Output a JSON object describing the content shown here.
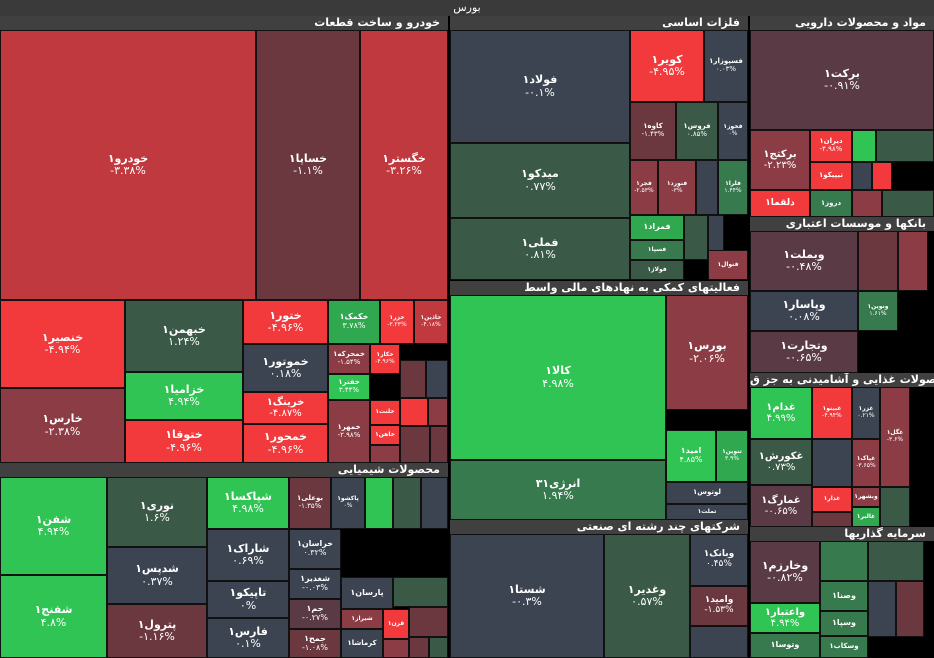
{
  "title": "بورس",
  "colors": {
    "dred": "#c0393f",
    "red": "#f23a3d",
    "mred": "#8b3c44",
    "brown": "#6b3840",
    "dbrown": "#5a3a44",
    "slate": "#3c4451",
    "dgreen": "#3a5a47",
    "mgreen": "#367a4e",
    "green": "#30c454",
    "lgreen": "#2fa84f"
  },
  "sectors": [
    {
      "id": "auto",
      "name": "خودرو و ساخت قطعات"
    },
    {
      "id": "metals",
      "name": "فلزات اساسی"
    },
    {
      "id": "pharma",
      "name": "مواد و محصولات دارویی"
    },
    {
      "id": "banks",
      "name": "بانکها و موسسات اعتباری"
    },
    {
      "id": "fin",
      "name": "فعالیتهای کمکی به نهادهای مالی واسط"
    },
    {
      "id": "chem",
      "name": "محصولات شیمیایی"
    },
    {
      "id": "food",
      "name": "محصولات غذایی و آشامیدنی به جز ق"
    },
    {
      "id": "multi",
      "name": "شرکتهای چند رشته ای صنعتی"
    },
    {
      "id": "invest",
      "name": "سرمایه گذاریها"
    }
  ],
  "tiles": [
    {
      "s": "خودرو۱",
      "c": "-۳.۳۸%",
      "col": "dred"
    },
    {
      "s": "خساپا۱",
      "c": "-۱.۱%",
      "col": "brown"
    },
    {
      "s": "خگستر۱",
      "c": "-۳.۲۶%",
      "col": "dred"
    },
    {
      "s": "خنصیر۱",
      "c": "-۴.۹۴%",
      "col": "red"
    },
    {
      "s": "خبهمن۱",
      "c": "۱.۲۴%",
      "col": "dgreen"
    },
    {
      "s": "ختور۱",
      "c": "-۴.۹۶%",
      "col": "red"
    },
    {
      "s": "خکمک۱",
      "c": "۳.۷۸%",
      "col": "lgreen"
    },
    {
      "s": "خزر۱",
      "c": "-۳.۲۳%",
      "col": "red"
    },
    {
      "s": "خاذین۱",
      "c": "-۴.۱۸%",
      "col": "dred"
    },
    {
      "s": "خمحرکه۱",
      "c": "-۱.۵۴%",
      "col": "mred"
    },
    {
      "s": "خکار۱",
      "c": "-۴.۹۶%",
      "col": "red"
    },
    {
      "s": "خموتور۱",
      "c": "۰.۱۸%",
      "col": "slate"
    },
    {
      "s": "خزامیا۱",
      "c": "۴.۹۴%",
      "col": "green"
    },
    {
      "s": "خفنر۱",
      "c": "۳.۴۴%",
      "col": "green"
    },
    {
      "s": "خارس۱",
      "c": "-۲.۳۸%",
      "col": "mred"
    },
    {
      "s": "خرینگ۱",
      "c": "-۴.۸۷%",
      "col": "red"
    },
    {
      "s": "خلنت۱",
      "c": "",
      "col": "red"
    },
    {
      "s": "ختوقا۱",
      "c": "-۴.۹۶%",
      "col": "red"
    },
    {
      "s": "خمحور۱",
      "c": "-۴.۹۶%",
      "col": "red"
    },
    {
      "s": "خمهر۱",
      "c": "-۲.۹۸%",
      "col": "mred"
    },
    {
      "s": "خاهن۱",
      "c": "",
      "col": "red"
    },
    {
      "s": "",
      "c": "",
      "col": "brown"
    },
    {
      "s": "",
      "c": "",
      "col": "slate"
    },
    {
      "s": "",
      "c": "",
      "col": "red"
    },
    {
      "s": "",
      "c": "",
      "col": "mred"
    },
    {
      "s": "",
      "c": "",
      "col": "brown"
    },
    {
      "s": "",
      "c": "",
      "col": "brown"
    },
    {
      "s": "",
      "c": "",
      "col": "mred"
    },
    {
      "s": "فولاد۱",
      "c": "-۰.۱%",
      "col": "slate"
    },
    {
      "s": "کویر۱",
      "c": "-۴.۹۵%",
      "col": "red"
    },
    {
      "s": "فسپوزار۱",
      "c": "۰.۰۳%",
      "col": "slate"
    },
    {
      "s": "فخوز۱",
      "c": "۰%",
      "col": "slate"
    },
    {
      "s": "کاوه۱",
      "c": "-۱.۴۳%",
      "col": "brown"
    },
    {
      "s": "فروس۱",
      "c": "۰.۸۵%",
      "col": "dgreen"
    },
    {
      "s": "میدکو۱",
      "c": "۰.۷۷%",
      "col": "dgreen"
    },
    {
      "s": "فجر۱",
      "c": "-۲.۵۳%",
      "col": "mred"
    },
    {
      "s": "فنورد۱",
      "c": "-۳%",
      "col": "mred"
    },
    {
      "s": "",
      "c": "",
      "col": "slate"
    },
    {
      "s": "فلرا۱",
      "c": "۱.۴۴%",
      "col": "mgreen"
    },
    {
      "s": "فمراد۱",
      "c": "",
      "col": "lgreen"
    },
    {
      "s": "فملی۱",
      "c": "۰.۸۱%",
      "col": "dgreen"
    },
    {
      "s": "",
      "c": "",
      "col": "dgreen"
    },
    {
      "s": "فسپا۱",
      "c": "",
      "col": "mgreen"
    },
    {
      "s": "فولاژ۱",
      "c": "",
      "col": "dgreen"
    },
    {
      "s": "",
      "c": "",
      "col": "slate"
    },
    {
      "s": "فنوال۱",
      "c": "",
      "col": "mred"
    },
    {
      "s": "برکت۱",
      "c": "-۰.۹۱%",
      "col": "dbrown"
    },
    {
      "s": "برکتج۱",
      "c": "-۲.۲۳%",
      "col": "mred"
    },
    {
      "s": "دیران۱",
      "c": "-۴.۹۸%",
      "col": "red"
    },
    {
      "s": "",
      "c": "",
      "col": "green"
    },
    {
      "s": "",
      "c": "",
      "col": "dgreen"
    },
    {
      "s": "تیپیکو۱",
      "c": "",
      "col": "red"
    },
    {
      "s": "",
      "c": "",
      "col": "slate"
    },
    {
      "s": "",
      "c": "",
      "col": "red"
    },
    {
      "s": "دلقما۱",
      "c": "",
      "col": "red"
    },
    {
      "s": "دروز۱",
      "c": "",
      "col": "mgreen"
    },
    {
      "s": "",
      "c": "",
      "col": "mred"
    },
    {
      "s": "",
      "c": "",
      "col": "dgreen"
    },
    {
      "s": "وبملت۱",
      "c": "-۰.۴۸%",
      "col": "dbrown"
    },
    {
      "s": "",
      "c": "",
      "col": "brown"
    },
    {
      "s": "",
      "c": "",
      "col": "mred"
    },
    {
      "s": "وپاسار۱",
      "c": "۰.۰۸%",
      "col": "slate"
    },
    {
      "s": "ونوین۱",
      "c": "۱.۶۱%",
      "col": "mgreen"
    },
    {
      "s": "وتجارت۱",
      "c": "-۰.۶۵%",
      "col": "dbrown"
    },
    {
      "s": "کالا۱",
      "c": "۴.۹۸%",
      "col": "green"
    },
    {
      "s": "بورس۱",
      "c": "-۲.۰۶%",
      "col": "mred"
    },
    {
      "s": "انرژی۳۱",
      "c": "۱.۹۴%",
      "col": "mgreen"
    },
    {
      "s": "امید۱",
      "c": "۴.۸۵%",
      "col": "green"
    },
    {
      "s": "تنوین۱",
      "c": "۳.۹%",
      "col": "lgreen"
    },
    {
      "s": "لوتوس۱",
      "c": "",
      "col": "slate"
    },
    {
      "s": "تملت۱",
      "c": "",
      "col": "slate"
    },
    {
      "s": "شفن۱",
      "c": "۴.۹۴%",
      "col": "green"
    },
    {
      "s": "نوری۱",
      "c": "۱.۶%",
      "col": "dgreen"
    },
    {
      "s": "شپاکسا۱",
      "c": "۴.۹۸%",
      "col": "green"
    },
    {
      "s": "بوعلی۱",
      "c": "-۱.۳۵%",
      "col": "brown"
    },
    {
      "s": "پاکشو۱",
      "c": "۰%",
      "col": "slate"
    },
    {
      "s": "",
      "c": "",
      "col": "green"
    },
    {
      "s": "",
      "c": "",
      "col": "dgreen"
    },
    {
      "s": "",
      "c": "",
      "col": "slate"
    },
    {
      "s": "شدپس۱",
      "c": "۰.۳۷%",
      "col": "slate"
    },
    {
      "s": "شاراک۱",
      "c": "۰.۶۹%",
      "col": "slate"
    },
    {
      "s": "خراسان۱",
      "c": "۰.۳۲%",
      "col": "slate"
    },
    {
      "s": "شغدیر۱",
      "c": "-۰.۰۳%",
      "col": "slate"
    },
    {
      "s": "شفنج۱",
      "c": "۴.۸%",
      "col": "green"
    },
    {
      "s": "تاپیکو۱",
      "c": "۰%",
      "col": "slate"
    },
    {
      "s": "جم۱",
      "c": "-۰.۲۷%",
      "col": "dbrown"
    },
    {
      "s": "پارسان۱",
      "c": "",
      "col": "slate"
    },
    {
      "s": "",
      "c": "",
      "col": "dgreen"
    },
    {
      "s": "پترول۱",
      "c": "-۱.۱۶%",
      "col": "brown"
    },
    {
      "s": "فارس۱",
      "c": "۰.۱%",
      "col": "slate"
    },
    {
      "s": "جمح۱",
      "c": "-۱.۰۸%",
      "col": "brown"
    },
    {
      "s": "شیراز۱",
      "c": "",
      "col": "mred"
    },
    {
      "s": "قرن۱",
      "c": "",
      "col": "red"
    },
    {
      "s": "",
      "c": "",
      "col": "brown"
    },
    {
      "s": "کرماشا۱",
      "c": "",
      "col": "slate"
    },
    {
      "s": "",
      "c": "",
      "col": "mred"
    },
    {
      "s": "",
      "c": "",
      "col": "brown"
    },
    {
      "s": "",
      "c": "",
      "col": "dgreen"
    },
    {
      "s": "غدام۱",
      "c": "۴.۹۹%",
      "col": "green"
    },
    {
      "s": "غبینو۱",
      "c": "-۴.۹۴%",
      "col": "red"
    },
    {
      "s": "غزر۱",
      "c": "۰.۲۱%",
      "col": "slate"
    },
    {
      "s": "غکورش۱",
      "c": "۰.۷۳%",
      "col": "dgreen"
    },
    {
      "s": "غگل۱",
      "c": "-۳.۶%",
      "col": "mred"
    },
    {
      "s": "غپاک۱",
      "c": "-۳.۶۵%",
      "col": "mred"
    },
    {
      "s": "",
      "c": "",
      "col": "slate"
    },
    {
      "s": "غمارگ۱",
      "c": "-۰.۶۵%",
      "col": "dbrown"
    },
    {
      "s": "غدار۱",
      "c": "",
      "col": "red"
    },
    {
      "s": "وبشهر۱",
      "c": "",
      "col": "mred"
    },
    {
      "s": "",
      "c": "",
      "col": "dgreen"
    },
    {
      "s": "غالبر۱",
      "c": "",
      "col": "lgreen"
    },
    {
      "s": "",
      "c": "",
      "col": "brown"
    },
    {
      "s": "شستا۱",
      "c": "-۰.۳%",
      "col": "slate"
    },
    {
      "s": "وغدیر۱",
      "c": "۰.۵۷%",
      "col": "dgreen"
    },
    {
      "s": "وبانک۱",
      "c": "۰.۴۵%",
      "col": "slate"
    },
    {
      "s": "وامید۱",
      "c": "-۱.۵۳%",
      "col": "brown"
    },
    {
      "s": "",
      "c": "",
      "col": "slate"
    },
    {
      "s": "وخارزم۱",
      "c": "-۰.۸۲%",
      "col": "dbrown"
    },
    {
      "s": "",
      "c": "",
      "col": "mgreen"
    },
    {
      "s": "",
      "c": "",
      "col": "dgreen"
    },
    {
      "s": "وصنا۱",
      "c": "",
      "col": "mgreen"
    },
    {
      "s": "",
      "c": "",
      "col": "slate"
    },
    {
      "s": "واعتبار۱",
      "c": "۴.۹۴%",
      "col": "green"
    },
    {
      "s": "وسپا۱",
      "c": "",
      "col": "mgreen"
    },
    {
      "s": "وتوسا۱",
      "c": "",
      "col": "mgreen"
    },
    {
      "s": "وسکاب۱",
      "c": "",
      "col": "mgreen"
    },
    {
      "s": "",
      "c": "",
      "col": "brown"
    }
  ]
}
